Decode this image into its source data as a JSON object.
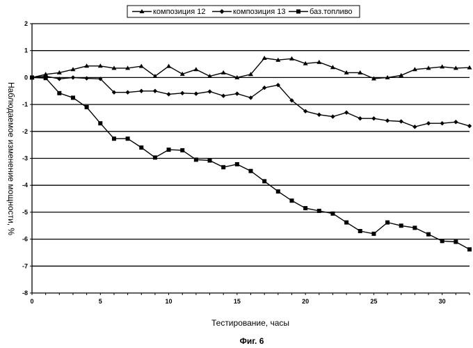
{
  "chart_data": {
    "type": "line",
    "xlabel": "Тестирование, часы",
    "ylabel": "Наблюдаемое изменение мощности, %",
    "caption": "Фиг. 6",
    "xlim": [
      0,
      32
    ],
    "ylim": [
      -8,
      2
    ],
    "x_ticks": [
      0,
      5,
      10,
      15,
      20,
      25,
      30
    ],
    "y_ticks": [
      2,
      1,
      0,
      -1,
      -2,
      -3,
      -4,
      -5,
      -6,
      -7,
      -8
    ],
    "grid": "horizontal",
    "legend_position": "top",
    "series": [
      {
        "name": "композиция 12",
        "marker": "triangle",
        "x": [
          0,
          1,
          2,
          3,
          4,
          5,
          6,
          7,
          8,
          9,
          10,
          11,
          12,
          13,
          14,
          15,
          16,
          17,
          18,
          19,
          20,
          21,
          22,
          23,
          24,
          25,
          26,
          27,
          28,
          29,
          30,
          31,
          32
        ],
        "values": [
          0,
          0.12,
          0.18,
          0.3,
          0.43,
          0.43,
          0.35,
          0.35,
          0.42,
          0.05,
          0.42,
          0.13,
          0.3,
          0.05,
          0.18,
          0.0,
          0.12,
          0.72,
          0.65,
          0.7,
          0.52,
          0.57,
          0.38,
          0.18,
          0.18,
          -0.04,
          0.0,
          0.08,
          0.3,
          0.35,
          0.4,
          0.35,
          0.37
        ]
      },
      {
        "name": "композиция 13",
        "marker": "diamond",
        "x": [
          0,
          1,
          2,
          3,
          4,
          5,
          6,
          7,
          8,
          9,
          10,
          11,
          12,
          13,
          14,
          15,
          16,
          17,
          18,
          19,
          20,
          21,
          22,
          23,
          24,
          25,
          26,
          27,
          28,
          29,
          30,
          31,
          32
        ],
        "values": [
          0,
          0.05,
          -0.05,
          0.0,
          -0.03,
          -0.05,
          -0.55,
          -0.55,
          -0.5,
          -0.5,
          -0.62,
          -0.58,
          -0.6,
          -0.52,
          -0.68,
          -0.6,
          -0.75,
          -0.38,
          -0.28,
          -0.85,
          -1.25,
          -1.38,
          -1.45,
          -1.3,
          -1.52,
          -1.52,
          -1.6,
          -1.63,
          -1.83,
          -1.7,
          -1.7,
          -1.65,
          -1.8
        ]
      },
      {
        "name": "баз.топливо",
        "marker": "square",
        "x": [
          0,
          1,
          2,
          3,
          4,
          5,
          6,
          7,
          8,
          9,
          10,
          11,
          12,
          13,
          14,
          15,
          16,
          17,
          18,
          19,
          20,
          21,
          22,
          23,
          24,
          25,
          26,
          27,
          28,
          29,
          30,
          31,
          32
        ],
        "values": [
          0,
          -0.02,
          -0.58,
          -0.75,
          -1.1,
          -1.7,
          -2.27,
          -2.27,
          -2.6,
          -2.97,
          -2.68,
          -2.7,
          -3.05,
          -3.08,
          -3.33,
          -3.22,
          -3.47,
          -3.85,
          -4.23,
          -4.57,
          -4.85,
          -4.95,
          -5.05,
          -5.38,
          -5.7,
          -5.8,
          -5.38,
          -5.5,
          -5.58,
          -5.82,
          -6.07,
          -6.1,
          -6.38
        ]
      }
    ]
  }
}
